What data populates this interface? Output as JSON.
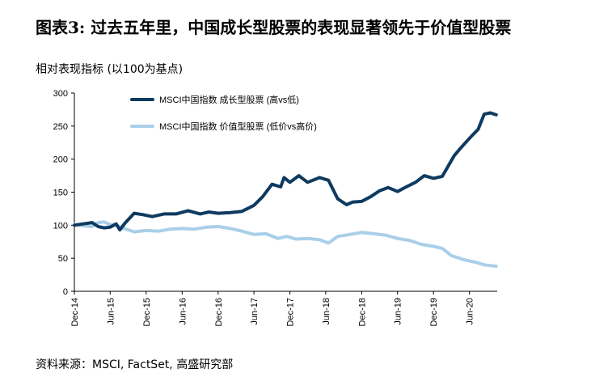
{
  "header": {
    "title": "图表3: 过去五年里，中国成长型股票的表现显著领先于价值型股票",
    "subtitle": "相对表现指标 (以100为基点)"
  },
  "footer": {
    "source": "资料来源：MSCI, FactSet, 高盛研究部"
  },
  "colors": {
    "growth": "#0e3a5f",
    "value": "#a9cfe9",
    "axis": "#000000"
  },
  "chart_data": {
    "type": "line",
    "title": "",
    "xlabel": "",
    "ylabel": "相对表现指标 (以100为基点)",
    "ylim": [
      0,
      300
    ],
    "y_ticks": [
      0,
      50,
      100,
      150,
      200,
      250,
      300
    ],
    "x_tick_labels": [
      "Dec-14",
      "Jun-15",
      "Dec-15",
      "Jun-16",
      "Dec-16",
      "Jun-17",
      "Dec-17",
      "Jun-18",
      "Dec-18",
      "Jun-19",
      "Dec-19",
      "Jun-20"
    ],
    "x_tick_dates": [
      "2014-12-01",
      "2015-06-01",
      "2015-12-01",
      "2016-06-01",
      "2016-12-01",
      "2017-06-01",
      "2017-12-01",
      "2018-06-01",
      "2018-12-01",
      "2019-06-01",
      "2019-12-01",
      "2020-06-01"
    ],
    "xlim": [
      "2014-12-01",
      "2020-10-20"
    ],
    "legend_position": "top-center",
    "grid": false,
    "series": [
      {
        "name": "MSCI中国指数 成长型股票 (高vs低)",
        "x": [
          "2014-12-01",
          "2015-01-15",
          "2015-03-01",
          "2015-04-01",
          "2015-05-01",
          "2015-06-01",
          "2015-07-01",
          "2015-07-20",
          "2015-08-15",
          "2015-10-01",
          "2015-11-15",
          "2016-01-01",
          "2016-03-01",
          "2016-05-01",
          "2016-07-01",
          "2016-09-01",
          "2016-10-15",
          "2016-12-01",
          "2017-02-01",
          "2017-04-01",
          "2017-06-01",
          "2017-07-15",
          "2017-09-01",
          "2017-10-15",
          "2017-11-01",
          "2017-12-01",
          "2018-01-15",
          "2018-03-01",
          "2018-05-01",
          "2018-06-15",
          "2018-08-01",
          "2018-09-15",
          "2018-10-15",
          "2018-12-01",
          "2019-01-15",
          "2019-03-01",
          "2019-04-15",
          "2019-06-01",
          "2019-07-15",
          "2019-09-01",
          "2019-10-15",
          "2019-12-01",
          "2020-01-15",
          "2020-02-15",
          "2020-03-15",
          "2020-04-15",
          "2020-05-15",
          "2020-06-15",
          "2020-07-15",
          "2020-08-15",
          "2020-09-15",
          "2020-10-15"
        ],
        "values": [
          100,
          102,
          104,
          98,
          96,
          97,
          102,
          93,
          103,
          118,
          116,
          113,
          117,
          117,
          122,
          117,
          120,
          118,
          119,
          121,
          130,
          143,
          162,
          158,
          172,
          165,
          175,
          165,
          172,
          168,
          140,
          131,
          135,
          136,
          143,
          152,
          157,
          151,
          158,
          165,
          175,
          171,
          174,
          190,
          205,
          216,
          226,
          236,
          245,
          268,
          270,
          267
        ]
      },
      {
        "name": "MSCI中国指数 价值型股票 (低价vs高价)",
        "x": [
          "2014-12-01",
          "2015-01-15",
          "2015-03-01",
          "2015-04-01",
          "2015-05-01",
          "2015-06-01",
          "2015-07-01",
          "2015-08-01",
          "2015-10-01",
          "2015-12-01",
          "2016-02-01",
          "2016-04-01",
          "2016-06-01",
          "2016-08-01",
          "2016-10-01",
          "2016-12-01",
          "2017-02-01",
          "2017-04-01",
          "2017-06-01",
          "2017-08-01",
          "2017-10-01",
          "2017-11-15",
          "2018-01-01",
          "2018-03-01",
          "2018-05-01",
          "2018-06-15",
          "2018-08-01",
          "2018-10-01",
          "2018-12-01",
          "2019-02-01",
          "2019-04-01",
          "2019-06-01",
          "2019-08-01",
          "2019-10-01",
          "2019-12-01",
          "2020-01-15",
          "2020-03-01",
          "2020-05-01",
          "2020-07-01",
          "2020-08-15",
          "2020-10-15"
        ],
        "values": [
          101,
          99,
          98,
          104,
          105,
          101,
          100,
          96,
          90,
          92,
          91,
          94,
          95,
          94,
          97,
          98,
          95,
          91,
          86,
          87,
          80,
          83,
          79,
          80,
          78,
          73,
          83,
          86,
          89,
          87,
          85,
          80,
          77,
          71,
          68,
          65,
          54,
          48,
          44,
          40,
          38
        ]
      }
    ]
  }
}
